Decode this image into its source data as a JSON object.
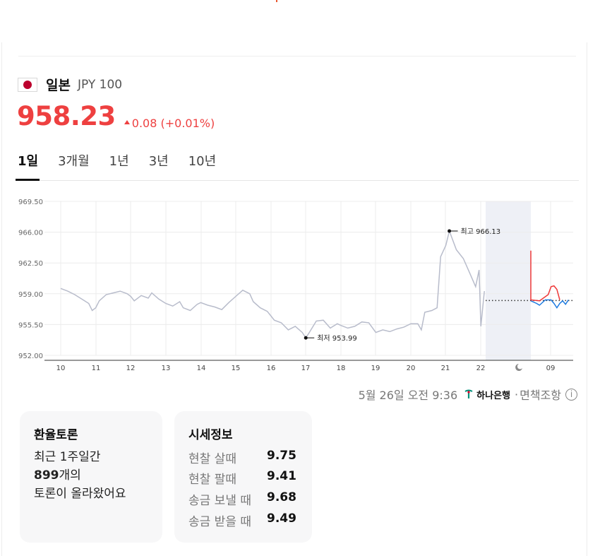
{
  "header": {
    "flag_icon": "japan-flag-icon",
    "country": "일본",
    "code": "JPY 100"
  },
  "price": {
    "current": "958.23",
    "change": "0.08 (+0.01%)",
    "color": "#ee4040"
  },
  "tabs": [
    {
      "label": "1일",
      "active": true
    },
    {
      "label": "3개월",
      "active": false
    },
    {
      "label": "1년",
      "active": false
    },
    {
      "label": "3년",
      "active": false
    },
    {
      "label": "10년",
      "active": false
    }
  ],
  "chart_data": {
    "type": "line",
    "y_ticks": [
      "969.50",
      "966.00",
      "962.50",
      "959.00",
      "955.50",
      "952.00"
    ],
    "x_ticks": [
      "10",
      "11",
      "12",
      "13",
      "14",
      "15",
      "16",
      "17",
      "18",
      "19",
      "20",
      "21",
      "22",
      "09"
    ],
    "ylim": [
      952.0,
      969.5
    ],
    "grid": true,
    "high_label": "최고 966.13",
    "low_label": "최저 953.99",
    "baseline": 958.23,
    "night_icon": "moon-icon",
    "series": [
      {
        "color": "#b8bccb",
        "points": [
          [
            10,
            959.6
          ],
          [
            10.2,
            959.3
          ],
          [
            10.4,
            958.9
          ],
          [
            10.6,
            958.4
          ],
          [
            10.8,
            957.9
          ],
          [
            10.9,
            957.1
          ],
          [
            11.0,
            957.4
          ],
          [
            11.1,
            958.2
          ],
          [
            11.3,
            958.9
          ],
          [
            11.5,
            959.1
          ],
          [
            11.7,
            959.3
          ],
          [
            11.9,
            959.0
          ],
          [
            12.0,
            958.7
          ],
          [
            12.1,
            958.2
          ],
          [
            12.3,
            958.8
          ],
          [
            12.5,
            958.5
          ],
          [
            12.6,
            959.1
          ],
          [
            12.8,
            958.4
          ],
          [
            13.0,
            957.9
          ],
          [
            13.2,
            957.6
          ],
          [
            13.4,
            958.1
          ],
          [
            13.5,
            957.4
          ],
          [
            13.7,
            957.1
          ],
          [
            13.9,
            957.8
          ],
          [
            14.0,
            958.0
          ],
          [
            14.2,
            957.7
          ],
          [
            14.4,
            957.5
          ],
          [
            14.6,
            957.2
          ],
          [
            14.8,
            958.0
          ],
          [
            15.0,
            958.7
          ],
          [
            15.2,
            959.4
          ],
          [
            15.4,
            959.0
          ],
          [
            15.5,
            958.1
          ],
          [
            15.7,
            957.4
          ],
          [
            15.9,
            957.0
          ],
          [
            16.0,
            956.5
          ],
          [
            16.1,
            956.0
          ],
          [
            16.3,
            955.7
          ],
          [
            16.5,
            954.9
          ],
          [
            16.7,
            955.3
          ],
          [
            16.9,
            954.6
          ],
          [
            17.0,
            953.99
          ],
          [
            17.1,
            954.6
          ],
          [
            17.3,
            955.9
          ],
          [
            17.5,
            956.0
          ],
          [
            17.7,
            955.1
          ],
          [
            17.9,
            955.6
          ],
          [
            18.0,
            955.4
          ],
          [
            18.2,
            955.1
          ],
          [
            18.4,
            955.3
          ],
          [
            18.6,
            955.8
          ],
          [
            18.8,
            955.7
          ],
          [
            19.0,
            954.6
          ],
          [
            19.2,
            954.9
          ],
          [
            19.4,
            954.7
          ],
          [
            19.6,
            955.0
          ],
          [
            19.8,
            955.2
          ],
          [
            20.0,
            955.6
          ],
          [
            20.2,
            955.6
          ],
          [
            20.3,
            954.9
          ],
          [
            20.4,
            956.9
          ],
          [
            20.6,
            957.1
          ],
          [
            20.75,
            957.4
          ],
          [
            20.85,
            963.2
          ],
          [
            21.0,
            964.5
          ],
          [
            21.1,
            966.13
          ],
          [
            21.3,
            964.0
          ],
          [
            21.5,
            963.0
          ],
          [
            21.7,
            961.2
          ],
          [
            21.85,
            959.8
          ],
          [
            21.95,
            961.7
          ],
          [
            22.0,
            955.3
          ],
          [
            22.1,
            959.3
          ]
        ]
      },
      {
        "color": "#1e7be0",
        "points": [
          [
            23.3,
            958.2
          ],
          [
            23.5,
            957.9
          ],
          [
            23.6,
            957.7
          ],
          [
            23.8,
            958.3
          ],
          [
            24.0,
            958.3
          ],
          [
            24.1,
            957.9
          ],
          [
            24.2,
            957.4
          ],
          [
            24.3,
            957.9
          ],
          [
            24.4,
            958.2
          ],
          [
            24.5,
            957.8
          ],
          [
            24.6,
            958.3
          ]
        ]
      },
      {
        "color": "#ee3838",
        "points": [
          [
            23.3,
            963.9
          ],
          [
            23.3,
            958.3
          ],
          [
            23.6,
            958.2
          ],
          [
            23.9,
            958.9
          ],
          [
            24.0,
            959.8
          ],
          [
            24.1,
            959.9
          ],
          [
            24.2,
            959.5
          ],
          [
            24.3,
            958.3
          ]
        ]
      }
    ]
  },
  "footer": {
    "timestamp": "5월 26일 오전 9:36",
    "bank": "하나은행",
    "separator": "·",
    "disclaimer": "면책조항",
    "info_icon": "info-icon"
  },
  "discussion": {
    "title": "환율토론",
    "line1": "최근 1주일간",
    "count": "899",
    "count_suffix": "개의",
    "line3": "토론이 올라왔어요"
  },
  "market": {
    "title": "시세정보",
    "rows": [
      {
        "label": "현찰 살때",
        "value": "9.75"
      },
      {
        "label": "현찰 팔때",
        "value": "9.41"
      },
      {
        "label": "송금 보낼 때",
        "value": "9.68"
      },
      {
        "label": "송금 받을 때",
        "value": "9.49"
      }
    ]
  }
}
